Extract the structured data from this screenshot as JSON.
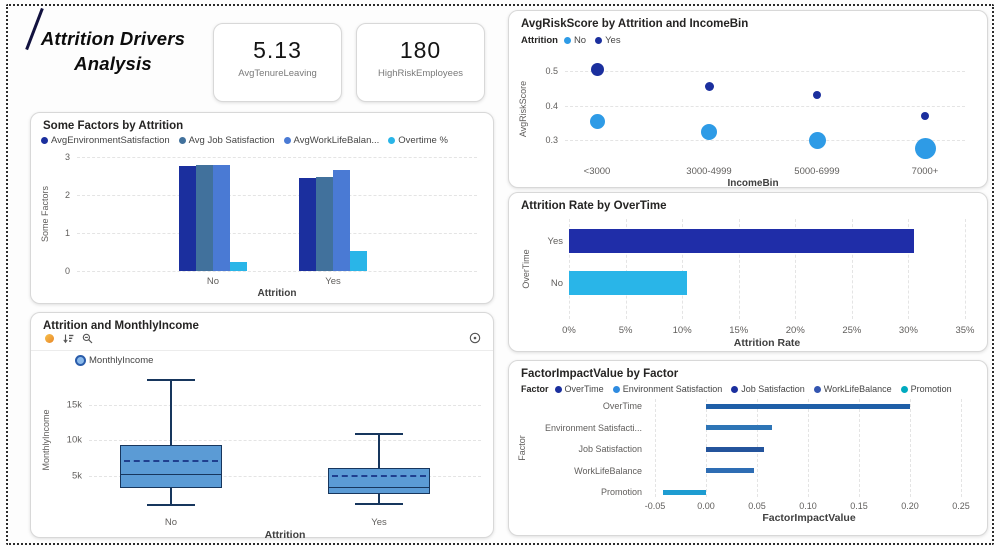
{
  "title": {
    "text": "Attrition Drivers Analysis"
  },
  "kpis": [
    {
      "value": "5.13",
      "label": "AvgTenureLeaving"
    },
    {
      "value": "180",
      "label": "HighRiskEmployees"
    }
  ],
  "colors": {
    "navy": "#1b2f9e",
    "steel_blue": "#41719c",
    "medium_blue": "#4a7ad4",
    "cyan": "#29b5e8",
    "box_fill": "#5b9bd5",
    "box_border": "#17365d",
    "teal": "#00aabf"
  },
  "icons": {
    "income_toolbar": [
      "spark-icon",
      "sort-icon",
      "zoom-out-icon"
    ],
    "income_corner": "options-icon"
  },
  "chart_data": [
    {
      "id": "factors",
      "type": "bar",
      "title": "Some Factors by Attrition",
      "categories": [
        "No",
        "Yes"
      ],
      "series": [
        {
          "name": "AvgEnvironmentSatisfaction",
          "color": "#1b2f9e",
          "values": [
            2.77,
            2.46
          ]
        },
        {
          "name": "Avg Job Satisfaction",
          "color": "#41719c",
          "values": [
            2.78,
            2.47
          ]
        },
        {
          "name": "AvgWorkLifeBalan...",
          "color": "#4a7ad4",
          "values": [
            2.78,
            2.66
          ]
        },
        {
          "name": "Overtime %",
          "color": "#29b5e8",
          "values": [
            0.23,
            0.53
          ]
        }
      ],
      "xlabel": "Attrition",
      "ylabel": "Some Factors",
      "ylim": [
        0,
        3
      ],
      "yticks": [
        {
          "v": 0,
          "label": "0"
        },
        {
          "v": 1,
          "label": "1"
        },
        {
          "v": 2,
          "label": "2"
        },
        {
          "v": 3,
          "label": "3"
        }
      ],
      "grid": true,
      "legend_position": "top"
    },
    {
      "id": "income",
      "type": "boxplot",
      "title": "Attrition and MonthlyIncome",
      "legend": "MonthlyIncome",
      "categories": [
        "No",
        "Yes"
      ],
      "boxes": [
        {
          "category": "No",
          "whisker_low": 900,
          "q1": 3200,
          "median": 5100,
          "mean": 7000,
          "q3": 9300,
          "whisker_high": 18500
        },
        {
          "category": "Yes",
          "whisker_low": 1000,
          "q1": 2400,
          "median": 3300,
          "mean": 4900,
          "q3": 6000,
          "whisker_high": 10900
        }
      ],
      "xlabel": "Attrition",
      "ylabel": "MonthlyIncome",
      "ylim": [
        0,
        20000
      ],
      "yticks": [
        {
          "v": 5000,
          "label": "5k"
        },
        {
          "v": 10000,
          "label": "10k"
        },
        {
          "v": 15000,
          "label": "15k"
        }
      ],
      "grid": true
    },
    {
      "id": "risk",
      "type": "scatter",
      "title": "AvgRiskScore by Attrition and IncomeBin",
      "legend_title": "Attrition",
      "categories": [
        "<3000",
        "3000-4999",
        "5000-6999",
        "7000+"
      ],
      "series": [
        {
          "name": "No",
          "color": "#2e9be6",
          "values": [
            0.355,
            0.325,
            0.3,
            0.275
          ],
          "sizes": [
            15,
            16,
            17,
            21
          ]
        },
        {
          "name": "Yes",
          "color": "#1b2f9e",
          "values": [
            0.505,
            0.455,
            0.43,
            0.37
          ],
          "sizes": [
            13,
            9,
            8,
            8
          ]
        }
      ],
      "xlabel": "IncomeBin",
      "ylabel": "AvgRiskScore",
      "ylim": [
        0.24,
        0.54
      ],
      "yticks": [
        {
          "v": 0.3,
          "label": "0.3"
        },
        {
          "v": 0.4,
          "label": "0.4"
        },
        {
          "v": 0.5,
          "label": "0.5"
        }
      ],
      "grid": true
    },
    {
      "id": "overtime",
      "type": "hbar",
      "title": "Attrition Rate by OverTime",
      "categories": [
        "Yes",
        "No"
      ],
      "values": [
        0.305,
        0.104
      ],
      "colors": [
        "#1f2da8",
        "#29b5e8"
      ],
      "xlabel": "Attrition Rate",
      "ylabel": "OverTime",
      "xlim": [
        0,
        0.35
      ],
      "xticks": [
        {
          "v": 0,
          "label": "0%"
        },
        {
          "v": 0.05,
          "label": "5%"
        },
        {
          "v": 0.1,
          "label": "10%"
        },
        {
          "v": 0.15,
          "label": "15%"
        },
        {
          "v": 0.2,
          "label": "20%"
        },
        {
          "v": 0.25,
          "label": "25%"
        },
        {
          "v": 0.3,
          "label": "30%"
        },
        {
          "v": 0.35,
          "label": "35%"
        }
      ],
      "grid": true
    },
    {
      "id": "impact",
      "type": "hbar",
      "title": "FactorImpactValue by Factor",
      "legend_title": "Factor",
      "legend": [
        {
          "name": "OverTime",
          "color": "#1b2f9e"
        },
        {
          "name": "Environment Satisfaction",
          "color": "#2e8be0"
        },
        {
          "name": "Job Satisfaction",
          "color": "#1b2f9e"
        },
        {
          "name": "WorkLifeBalance",
          "color": "#3355b0"
        },
        {
          "name": "Promotion",
          "color": "#00aabf"
        }
      ],
      "categories": [
        "OverTime",
        "Environment Satisfacti...",
        "Job Satisfaction",
        "WorkLifeBalance",
        "Promotion"
      ],
      "values": [
        0.2,
        0.065,
        0.057,
        0.047,
        -0.042
      ],
      "colors": [
        "#1f5fa8",
        "#2e75b6",
        "#24549c",
        "#2e6db4",
        "#1e9cd1"
      ],
      "xlabel": "FactorImpactValue",
      "ylabel": "Factor",
      "xlim": [
        -0.075,
        0.27
      ],
      "xticks": [
        {
          "v": -0.05,
          "label": "-0.05"
        },
        {
          "v": 0,
          "label": "0.00"
        },
        {
          "v": 0.05,
          "label": "0.05"
        },
        {
          "v": 0.1,
          "label": "0.10"
        },
        {
          "v": 0.15,
          "label": "0.15"
        },
        {
          "v": 0.2,
          "label": "0.20"
        },
        {
          "v": 0.25,
          "label": "0.25"
        }
      ],
      "grid": true
    }
  ]
}
